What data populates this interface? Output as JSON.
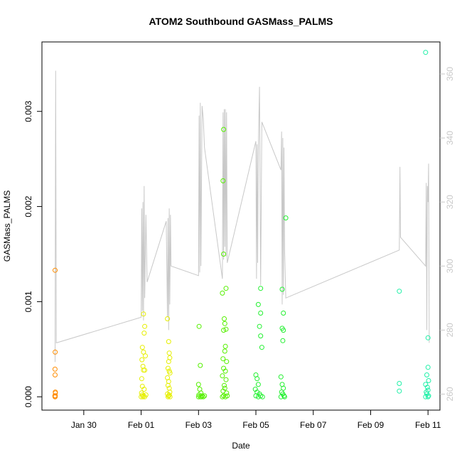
{
  "chart_data": {
    "type": "scatter",
    "title": "ATOM2 Southbound GASMass_PALMS",
    "xlabel": "Date",
    "ylabel": "GASMass_PALMS",
    "xlim": [
      "2017-01-28T13:00",
      "2017-02-11T10:00"
    ],
    "ylim": [
      -0.00014,
      0.00373
    ],
    "y2lim": [
      255.0,
      370.0
    ],
    "x_ticks": [
      {
        "t": "2017-01-30",
        "label": "Jan 30"
      },
      {
        "t": "2017-02-01",
        "label": "Feb 01"
      },
      {
        "t": "2017-02-03",
        "label": "Feb 03"
      },
      {
        "t": "2017-02-05",
        "label": "Feb 05"
      },
      {
        "t": "2017-02-07",
        "label": "Feb 07"
      },
      {
        "t": "2017-02-09",
        "label": "Feb 09"
      },
      {
        "t": "2017-02-11",
        "label": "Feb 11"
      }
    ],
    "y_ticks": [
      {
        "v": 0.0,
        "label": "0.000"
      },
      {
        "v": 0.001,
        "label": "0.001"
      },
      {
        "v": 0.002,
        "label": "0.002"
      },
      {
        "v": 0.003,
        "label": "0.003"
      }
    ],
    "y2_ticks": [
      {
        "v": 260,
        "label": "260"
      },
      {
        "v": 280,
        "label": "280"
      },
      {
        "v": 300,
        "label": "300"
      },
      {
        "v": 320,
        "label": "320"
      },
      {
        "v": 340,
        "label": "340"
      },
      {
        "v": 360,
        "label": "360"
      }
    ],
    "grid": false,
    "series": [
      {
        "color": "#ff8c00",
        "points": [
          [
            "2017-01-29T00:00",
            0.00133
          ],
          [
            "2017-01-29T00:05",
            0.00047
          ],
          [
            "2017-01-28T23:55",
            0.00029
          ],
          [
            "2017-01-29T00:00",
            0.00023
          ],
          [
            "2017-01-29T00:10",
            5e-05
          ],
          [
            "2017-01-29T00:15",
            4e-05
          ],
          [
            "2017-01-28T23:50",
            1e-05
          ],
          [
            "2017-01-28T23:55",
            0.0
          ],
          [
            "2017-01-29T00:05",
            0.0
          ],
          [
            "2017-01-29T00:12",
            1e-05
          ]
        ]
      },
      {
        "color": "#e6ef00",
        "points": [
          [
            "2017-02-01T02:00",
            0.00087
          ],
          [
            "2017-02-01T03:00",
            0.00074
          ],
          [
            "2017-02-01T02:30",
            0.00067
          ],
          [
            "2017-02-01T01:00",
            0.00052
          ],
          [
            "2017-02-01T02:00",
            0.00047
          ],
          [
            "2017-02-01T00:40",
            0.00039
          ],
          [
            "2017-02-01T03:30",
            0.00043
          ],
          [
            "2017-02-01T01:30",
            0.00032
          ],
          [
            "2017-02-01T02:00",
            0.00028
          ],
          [
            "2017-02-01T03:00",
            0.00028
          ],
          [
            "2017-02-01T00:30",
            0.00019
          ],
          [
            "2017-02-01T01:00",
            0.00011
          ],
          [
            "2017-02-01T02:30",
            8e-05
          ],
          [
            "2017-02-01T00:20",
            4e-05
          ],
          [
            "2017-02-01T01:00",
            2e-05
          ],
          [
            "2017-02-01T02:00",
            1e-05
          ],
          [
            "2017-02-01T03:00",
            0.0
          ],
          [
            "2017-02-01T00:00",
            0.0
          ],
          [
            "2017-02-01T04:00",
            2e-05
          ],
          [
            "2017-02-01T01:30",
            0.0
          ],
          [
            "2017-02-01T22:00",
            0.00082
          ],
          [
            "2017-02-01T23:00",
            0.00058
          ],
          [
            "2017-02-01T23:30",
            0.00046
          ],
          [
            "2017-02-02T00:00",
            0.00041
          ],
          [
            "2017-02-01T23:00",
            0.00037
          ],
          [
            "2017-02-01T22:30",
            0.0003
          ],
          [
            "2017-02-01T23:30",
            0.00027
          ],
          [
            "2017-02-02T00:10",
            0.00025
          ],
          [
            "2017-02-01T22:00",
            0.0002
          ],
          [
            "2017-02-01T23:00",
            0.00016
          ],
          [
            "2017-02-01T22:30",
            0.00012
          ],
          [
            "2017-02-01T23:30",
            9e-05
          ],
          [
            "2017-02-02T00:00",
            5e-05
          ],
          [
            "2017-02-01T22:00",
            3e-05
          ],
          [
            "2017-02-01T23:00",
            1e-05
          ],
          [
            "2017-02-01T22:30",
            0.0
          ],
          [
            "2017-02-02T00:10",
            0.0
          ],
          [
            "2017-02-01T23:30",
            2e-05
          ]
        ]
      },
      {
        "color": "#55f000",
        "points": [
          [
            "2017-02-03T00:30",
            0.00074
          ],
          [
            "2017-02-03T01:30",
            0.00033
          ],
          [
            "2017-02-03T00:00",
            0.00013
          ],
          [
            "2017-02-03T01:00",
            8e-05
          ],
          [
            "2017-02-03T02:00",
            4e-05
          ],
          [
            "2017-02-03T00:20",
            2e-05
          ],
          [
            "2017-02-03T01:30",
            0.0
          ],
          [
            "2017-02-03T03:00",
            1e-05
          ],
          [
            "2017-02-03T00:00",
            0.0
          ],
          [
            "2017-02-03T02:30",
            0.0
          ],
          [
            "2017-02-03T05:00",
            1e-05
          ],
          [
            "2017-02-03T04:00",
            0.0
          ],
          [
            "2017-02-03T21:00",
            0.00281
          ],
          [
            "2017-02-03T20:30",
            0.00227
          ],
          [
            "2017-02-03T21:00",
            0.0015
          ],
          [
            "2017-02-03T23:00",
            0.00114
          ],
          [
            "2017-02-03T20:00",
            0.00109
          ],
          [
            "2017-02-03T21:30",
            0.00082
          ],
          [
            "2017-02-03T22:00",
            0.00077
          ],
          [
            "2017-02-03T21:00",
            0.0007
          ],
          [
            "2017-02-03T23:00",
            0.00071
          ],
          [
            "2017-02-03T22:30",
            0.00053
          ],
          [
            "2017-02-03T22:00",
            0.00048
          ],
          [
            "2017-02-03T20:30",
            0.0004
          ],
          [
            "2017-02-03T23:30",
            0.00037
          ],
          [
            "2017-02-03T21:00",
            0.0003
          ],
          [
            "2017-02-03T22:30",
            0.00027
          ],
          [
            "2017-02-03T20:00",
            0.00022
          ],
          [
            "2017-02-03T23:00",
            0.00018
          ],
          [
            "2017-02-03T21:30",
            0.00012
          ],
          [
            "2017-02-03T22:00",
            9e-05
          ],
          [
            "2017-02-03T20:30",
            6e-05
          ],
          [
            "2017-02-03T23:30",
            4e-05
          ],
          [
            "2017-02-03T21:00",
            1e-05
          ],
          [
            "2017-02-03T22:30",
            0.0
          ],
          [
            "2017-02-03T20:00",
            0.0
          ],
          [
            "2017-02-04T00:00",
            1e-05
          ]
        ]
      },
      {
        "color": "#22f030",
        "points": [
          [
            "2017-02-05T04:00",
            0.00114
          ],
          [
            "2017-02-05T02:00",
            0.00097
          ],
          [
            "2017-02-05T04:00",
            0.00088
          ],
          [
            "2017-02-05T03:00",
            0.00074
          ],
          [
            "2017-02-05T04:00",
            0.00064
          ],
          [
            "2017-02-05T05:00",
            0.00052
          ],
          [
            "2017-02-05T00:00",
            0.00023
          ],
          [
            "2017-02-05T01:00",
            0.00019
          ],
          [
            "2017-02-05T02:00",
            0.00013
          ],
          [
            "2017-02-04T23:30",
            8e-05
          ],
          [
            "2017-02-05T01:00",
            5e-05
          ],
          [
            "2017-02-05T03:00",
            3e-05
          ],
          [
            "2017-02-05T00:00",
            1e-05
          ],
          [
            "2017-02-05T02:00",
            0.0
          ],
          [
            "2017-02-05T04:00",
            1e-05
          ],
          [
            "2017-02-05T05:30",
            0.0
          ],
          [
            "2017-02-05T22:00",
            0.00113
          ],
          [
            "2017-02-05T23:00",
            0.00088
          ],
          [
            "2017-02-05T22:00",
            0.00072
          ],
          [
            "2017-02-05T23:00",
            0.0007
          ],
          [
            "2017-02-05T22:30",
            0.00059
          ],
          [
            "2017-02-06T01:00",
            0.00188
          ],
          [
            "2017-02-05T21:00",
            0.00021
          ],
          [
            "2017-02-05T22:00",
            0.00013
          ],
          [
            "2017-02-05T23:00",
            9e-05
          ],
          [
            "2017-02-05T21:30",
            5e-05
          ],
          [
            "2017-02-05T22:30",
            3e-05
          ],
          [
            "2017-02-05T23:30",
            1e-05
          ],
          [
            "2017-02-05T21:00",
            0.0
          ],
          [
            "2017-02-06T00:00",
            0.0
          ]
        ]
      },
      {
        "color": "#20f0a8",
        "points": [
          [
            "2017-02-10T00:00",
            0.00111
          ],
          [
            "2017-02-10T00:00",
            0.00014
          ],
          [
            "2017-02-10T00:00",
            6e-05
          ],
          [
            "2017-02-10T22:00",
            0.00362
          ],
          [
            "2017-02-11T00:00",
            0.00062
          ],
          [
            "2017-02-11T00:00",
            0.00031
          ],
          [
            "2017-02-10T23:00",
            0.00023
          ],
          [
            "2017-02-11T00:30",
            0.00017
          ],
          [
            "2017-02-10T22:00",
            0.00013
          ],
          [
            "2017-02-10T23:30",
            0.0001
          ],
          [
            "2017-02-11T00:00",
            7e-05
          ],
          [
            "2017-02-10T22:30",
            5e-05
          ],
          [
            "2017-02-10T23:00",
            3e-05
          ],
          [
            "2017-02-11T00:30",
            1e-05
          ],
          [
            "2017-02-10T22:00",
            0.0
          ],
          [
            "2017-02-11T00:00",
            0.0
          ]
        ]
      }
    ],
    "right_axis_series": {
      "color": "#c8c8c8",
      "points": [
        [
          "2017-01-29T00:00",
          270
        ],
        [
          "2017-01-29T00:30",
          361
        ],
        [
          "2017-01-29T01:00",
          276
        ],
        [
          "2017-02-01T00:00",
          284
        ],
        [
          "2017-02-01T00:30",
          318
        ],
        [
          "2017-02-01T01:00",
          286
        ],
        [
          "2017-02-01T01:30",
          320
        ],
        [
          "2017-02-01T02:00",
          283
        ],
        [
          "2017-02-01T02:30",
          325
        ],
        [
          "2017-02-01T03:00",
          290
        ],
        [
          "2017-02-01T04:00",
          316
        ],
        [
          "2017-02-01T05:00",
          295
        ],
        [
          "2017-02-01T21:00",
          314
        ],
        [
          "2017-02-01T22:00",
          284
        ],
        [
          "2017-02-01T22:30",
          315
        ],
        [
          "2017-02-01T23:00",
          280
        ],
        [
          "2017-02-01T23:30",
          318
        ],
        [
          "2017-02-02T00:00",
          288
        ],
        [
          "2017-02-02T00:30",
          316
        ],
        [
          "2017-02-02T01:00",
          300
        ],
        [
          "2017-02-03T00:00",
          297
        ],
        [
          "2017-02-03T00:30",
          347
        ],
        [
          "2017-02-03T01:00",
          298
        ],
        [
          "2017-02-03T01:30",
          351
        ],
        [
          "2017-02-03T02:00",
          300
        ],
        [
          "2017-02-03T03:00",
          350
        ],
        [
          "2017-02-03T04:00",
          346
        ],
        [
          "2017-02-03T05:00",
          337
        ],
        [
          "2017-02-03T20:00",
          296
        ],
        [
          "2017-02-03T20:30",
          348
        ],
        [
          "2017-02-03T21:00",
          302
        ],
        [
          "2017-02-03T21:30",
          349
        ],
        [
          "2017-02-03T22:00",
          306
        ],
        [
          "2017-02-03T22:30",
          349
        ],
        [
          "2017-02-03T23:00",
          303
        ],
        [
          "2017-02-03T23:30",
          348
        ],
        [
          "2017-02-04T00:00",
          301
        ],
        [
          "2017-02-05T00:00",
          339
        ],
        [
          "2017-02-05T00:30",
          296
        ],
        [
          "2017-02-05T01:00",
          338
        ],
        [
          "2017-02-05T01:30",
          301
        ],
        [
          "2017-02-05T02:00",
          336
        ],
        [
          "2017-02-05T03:00",
          356
        ],
        [
          "2017-02-05T04:00",
          294
        ],
        [
          "2017-02-05T05:00",
          345
        ],
        [
          "2017-02-05T21:00",
          330
        ],
        [
          "2017-02-05T21:30",
          342
        ],
        [
          "2017-02-05T22:00",
          288
        ],
        [
          "2017-02-05T22:30",
          340
        ],
        [
          "2017-02-05T23:00",
          291
        ],
        [
          "2017-02-05T23:30",
          337
        ],
        [
          "2017-02-06T00:00",
          305
        ],
        [
          "2017-02-06T01:00",
          290
        ],
        [
          "2017-02-10T00:00",
          305
        ],
        [
          "2017-02-10T00:30",
          331
        ],
        [
          "2017-02-10T01:00",
          309
        ],
        [
          "2017-02-10T22:00",
          300
        ],
        [
          "2017-02-10T22:30",
          326
        ],
        [
          "2017-02-10T23:00",
          280
        ],
        [
          "2017-02-10T23:30",
          325
        ],
        [
          "2017-02-11T00:00",
          320
        ],
        [
          "2017-02-11T00:30",
          332
        ],
        [
          "2017-02-11T01:00",
          276
        ]
      ]
    }
  }
}
